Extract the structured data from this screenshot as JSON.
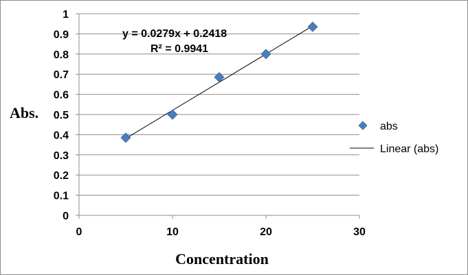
{
  "chart_data": {
    "type": "scatter",
    "title": "",
    "xlabel": "Concentration",
    "ylabel": "Abs.",
    "xlim": [
      0,
      30
    ],
    "ylim": [
      0,
      1
    ],
    "x_ticks": [
      "0",
      "10",
      "20",
      "30"
    ],
    "y_ticks": [
      "0",
      "0.1",
      "0.2",
      "0.3",
      "0.4",
      "0.5",
      "0.6",
      "0.7",
      "0.8",
      "0.9",
      "1"
    ],
    "grid": "horizontal",
    "legend_position": "right",
    "series": [
      {
        "name": "abs",
        "color": "#4a7ebb",
        "marker": "diamond",
        "x": [
          5,
          10,
          15,
          20,
          25
        ],
        "y": [
          0.385,
          0.5,
          0.685,
          0.8,
          0.935
        ]
      }
    ],
    "trendline": {
      "name": "Linear (abs)",
      "slope": 0.0279,
      "intercept": 0.2418,
      "x_range": [
        5,
        25
      ],
      "color": "#000000"
    },
    "equation_text": "y = 0.0279x + 0.2418",
    "r2_text": "R² = 0.9941"
  }
}
